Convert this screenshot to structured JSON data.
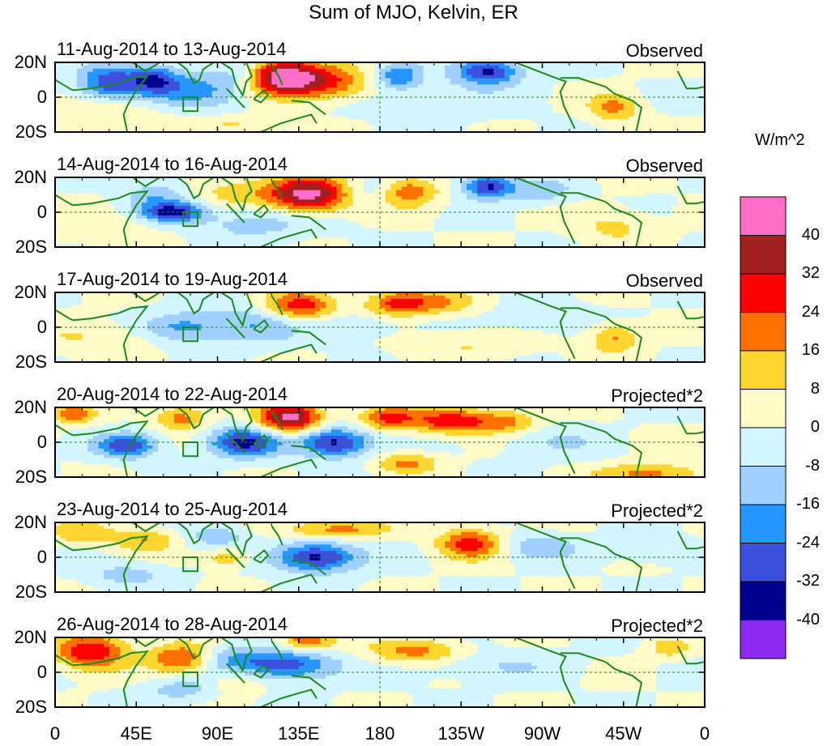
{
  "chart_data": {
    "type": "heatmap",
    "title": "Sum of MJO, Kelvin, ER",
    "units": "W/m^2",
    "y_ticks": [
      "20N",
      "0",
      "20S"
    ],
    "x_ticks": [
      "0",
      "45E",
      "90E",
      "135E",
      "180",
      "135W",
      "90W",
      "45W",
      "0"
    ],
    "x_tick_lon": [
      0,
      45,
      90,
      135,
      180,
      225,
      270,
      315,
      360
    ],
    "lat_range": [
      -20,
      20
    ],
    "lon_range": [
      0,
      360
    ],
    "colorbar": {
      "levels": [
        "40",
        "32",
        "24",
        "16",
        "8",
        "0",
        "-8",
        "-16",
        "-24",
        "-32",
        "-40"
      ],
      "colors": [
        "#ff6ec7",
        "#a02020",
        "#ff0000",
        "#ff7000",
        "#ffd530",
        "#fffac8",
        "#d2f5ff",
        "#a0d0ff",
        "#2896ff",
        "#3c50e0",
        "#000090",
        "#8c28f0"
      ]
    },
    "panels": [
      {
        "period": "11-Aug-2014 to 13-Aug-2014",
        "kind": "Observed",
        "anomalies": [
          {
            "lon": 30,
            "lat": 8,
            "amp": -30,
            "rx": 12,
            "ry": 7
          },
          {
            "lon": 55,
            "lat": 10,
            "amp": -26,
            "rx": 10,
            "ry": 6
          },
          {
            "lon": 80,
            "lat": 4,
            "amp": -18,
            "rx": 20,
            "ry": 8
          },
          {
            "lon": 105,
            "lat": 14,
            "amp": -10,
            "rx": 10,
            "ry": 5
          },
          {
            "lon": 125,
            "lat": 12,
            "amp": 44,
            "rx": 14,
            "ry": 7
          },
          {
            "lon": 150,
            "lat": 8,
            "amp": 26,
            "rx": 18,
            "ry": 7
          },
          {
            "lon": 190,
            "lat": 12,
            "amp": -22,
            "rx": 8,
            "ry": 5
          },
          {
            "lon": 240,
            "lat": 15,
            "amp": -34,
            "rx": 12,
            "ry": 5
          },
          {
            "lon": 210,
            "lat": 2,
            "amp": -6,
            "rx": 35,
            "ry": 10
          },
          {
            "lon": 310,
            "lat": -6,
            "amp": 18,
            "rx": 10,
            "ry": 6
          },
          {
            "lon": 30,
            "lat": -10,
            "amp": 8,
            "rx": 25,
            "ry": 7
          },
          {
            "lon": 100,
            "lat": -16,
            "amp": 10,
            "rx": 15,
            "ry": 4
          }
        ]
      },
      {
        "period": "14-Aug-2014 to 16-Aug-2014",
        "kind": "Observed",
        "anomalies": [
          {
            "lon": 55,
            "lat": 10,
            "amp": -14,
            "rx": 12,
            "ry": 6
          },
          {
            "lon": 65,
            "lat": 0,
            "amp": -34,
            "rx": 12,
            "ry": 4
          },
          {
            "lon": 100,
            "lat": 12,
            "amp": 12,
            "rx": 15,
            "ry": 6
          },
          {
            "lon": 140,
            "lat": 10,
            "amp": 44,
            "rx": 16,
            "ry": 7
          },
          {
            "lon": 175,
            "lat": 12,
            "amp": -10,
            "rx": 10,
            "ry": 5
          },
          {
            "lon": 195,
            "lat": 12,
            "amp": 22,
            "rx": 12,
            "ry": 6
          },
          {
            "lon": 240,
            "lat": 15,
            "amp": -34,
            "rx": 10,
            "ry": 5
          },
          {
            "lon": 270,
            "lat": 12,
            "amp": -14,
            "rx": 12,
            "ry": 5
          },
          {
            "lon": 110,
            "lat": -6,
            "amp": -12,
            "rx": 25,
            "ry": 7
          },
          {
            "lon": 20,
            "lat": -8,
            "amp": 6,
            "rx": 30,
            "ry": 8
          },
          {
            "lon": 310,
            "lat": -8,
            "amp": 10,
            "rx": 15,
            "ry": 7
          }
        ]
      },
      {
        "period": "17-Aug-2014 to 19-Aug-2014",
        "kind": "Observed",
        "anomalies": [
          {
            "lon": 70,
            "lat": 0,
            "amp": -18,
            "rx": 15,
            "ry": 6
          },
          {
            "lon": 110,
            "lat": 2,
            "amp": -16,
            "rx": 20,
            "ry": 8
          },
          {
            "lon": 135,
            "lat": 12,
            "amp": 30,
            "rx": 14,
            "ry": 6
          },
          {
            "lon": 190,
            "lat": 14,
            "amp": 26,
            "rx": 12,
            "ry": 5
          },
          {
            "lon": 215,
            "lat": 14,
            "amp": 14,
            "rx": 15,
            "ry": 5
          },
          {
            "lon": 165,
            "lat": 0,
            "amp": -10,
            "rx": 15,
            "ry": 5
          },
          {
            "lon": 310,
            "lat": -6,
            "amp": 18,
            "rx": 10,
            "ry": 6
          },
          {
            "lon": 270,
            "lat": 5,
            "amp": -8,
            "rx": 20,
            "ry": 6
          },
          {
            "lon": 20,
            "lat": -6,
            "amp": 8,
            "rx": 25,
            "ry": 7
          },
          {
            "lon": 230,
            "lat": -10,
            "amp": 8,
            "rx": 25,
            "ry": 6
          }
        ]
      },
      {
        "period": "20-Aug-2014 to 22-Aug-2014",
        "kind": "Projected*2",
        "anomalies": [
          {
            "lon": 10,
            "lat": 16,
            "amp": 22,
            "rx": 8,
            "ry": 4
          },
          {
            "lon": 40,
            "lat": -2,
            "amp": -30,
            "rx": 12,
            "ry": 5
          },
          {
            "lon": 70,
            "lat": 14,
            "amp": 20,
            "rx": 10,
            "ry": 5
          },
          {
            "lon": 105,
            "lat": 0,
            "amp": -34,
            "rx": 14,
            "ry": 6
          },
          {
            "lon": 130,
            "lat": 14,
            "amp": 44,
            "rx": 12,
            "ry": 6
          },
          {
            "lon": 155,
            "lat": 0,
            "amp": -36,
            "rx": 14,
            "ry": 6
          },
          {
            "lon": 185,
            "lat": 14,
            "amp": 26,
            "rx": 12,
            "ry": 5
          },
          {
            "lon": 220,
            "lat": 12,
            "amp": 30,
            "rx": 14,
            "ry": 5
          },
          {
            "lon": 250,
            "lat": 12,
            "amp": 18,
            "rx": 12,
            "ry": 5
          },
          {
            "lon": 195,
            "lat": -12,
            "amp": 18,
            "rx": 12,
            "ry": 4
          },
          {
            "lon": 330,
            "lat": -18,
            "amp": 20,
            "rx": 20,
            "ry": 4
          },
          {
            "lon": 275,
            "lat": 0,
            "amp": -8,
            "rx": 20,
            "ry": 6
          }
        ]
      },
      {
        "period": "23-Aug-2014 to 25-Aug-2014",
        "kind": "Projected*2",
        "anomalies": [
          {
            "lon": 15,
            "lat": 14,
            "amp": 14,
            "rx": 12,
            "ry": 5
          },
          {
            "lon": 50,
            "lat": 10,
            "amp": 16,
            "rx": 12,
            "ry": 5
          },
          {
            "lon": 90,
            "lat": 12,
            "amp": -14,
            "rx": 12,
            "ry": 5
          },
          {
            "lon": 145,
            "lat": 0,
            "amp": -36,
            "rx": 16,
            "ry": 6
          },
          {
            "lon": 155,
            "lat": 16,
            "amp": 20,
            "rx": 20,
            "ry": 4
          },
          {
            "lon": 230,
            "lat": 8,
            "amp": 28,
            "rx": 12,
            "ry": 6
          },
          {
            "lon": 270,
            "lat": 6,
            "amp": -14,
            "rx": 15,
            "ry": 5
          },
          {
            "lon": 95,
            "lat": 0,
            "amp": 16,
            "rx": 8,
            "ry": 4
          },
          {
            "lon": 40,
            "lat": -10,
            "amp": -12,
            "rx": 15,
            "ry": 5
          },
          {
            "lon": 330,
            "lat": 4,
            "amp": -8,
            "rx": 15,
            "ry": 5
          }
        ]
      },
      {
        "period": "26-Aug-2014 to 28-Aug-2014",
        "kind": "Projected*2",
        "anomalies": [
          {
            "lon": 20,
            "lat": 12,
            "amp": 32,
            "rx": 14,
            "ry": 7
          },
          {
            "lon": 70,
            "lat": 8,
            "amp": 26,
            "rx": 12,
            "ry": 6
          },
          {
            "lon": 100,
            "lat": 8,
            "amp": -14,
            "rx": 15,
            "ry": 6
          },
          {
            "lon": 130,
            "lat": 4,
            "amp": -28,
            "rx": 18,
            "ry": 6
          },
          {
            "lon": 140,
            "lat": 18,
            "amp": 26,
            "rx": 10,
            "ry": 4
          },
          {
            "lon": 200,
            "lat": 12,
            "amp": 20,
            "rx": 18,
            "ry": 5
          },
          {
            "lon": 240,
            "lat": 4,
            "amp": -8,
            "rx": 30,
            "ry": 6
          },
          {
            "lon": 100,
            "lat": -6,
            "amp": 10,
            "rx": 10,
            "ry": 5
          },
          {
            "lon": 70,
            "lat": -10,
            "amp": -12,
            "rx": 15,
            "ry": 5
          },
          {
            "lon": 340,
            "lat": 14,
            "amp": 14,
            "rx": 8,
            "ry": 4
          }
        ]
      }
    ]
  }
}
